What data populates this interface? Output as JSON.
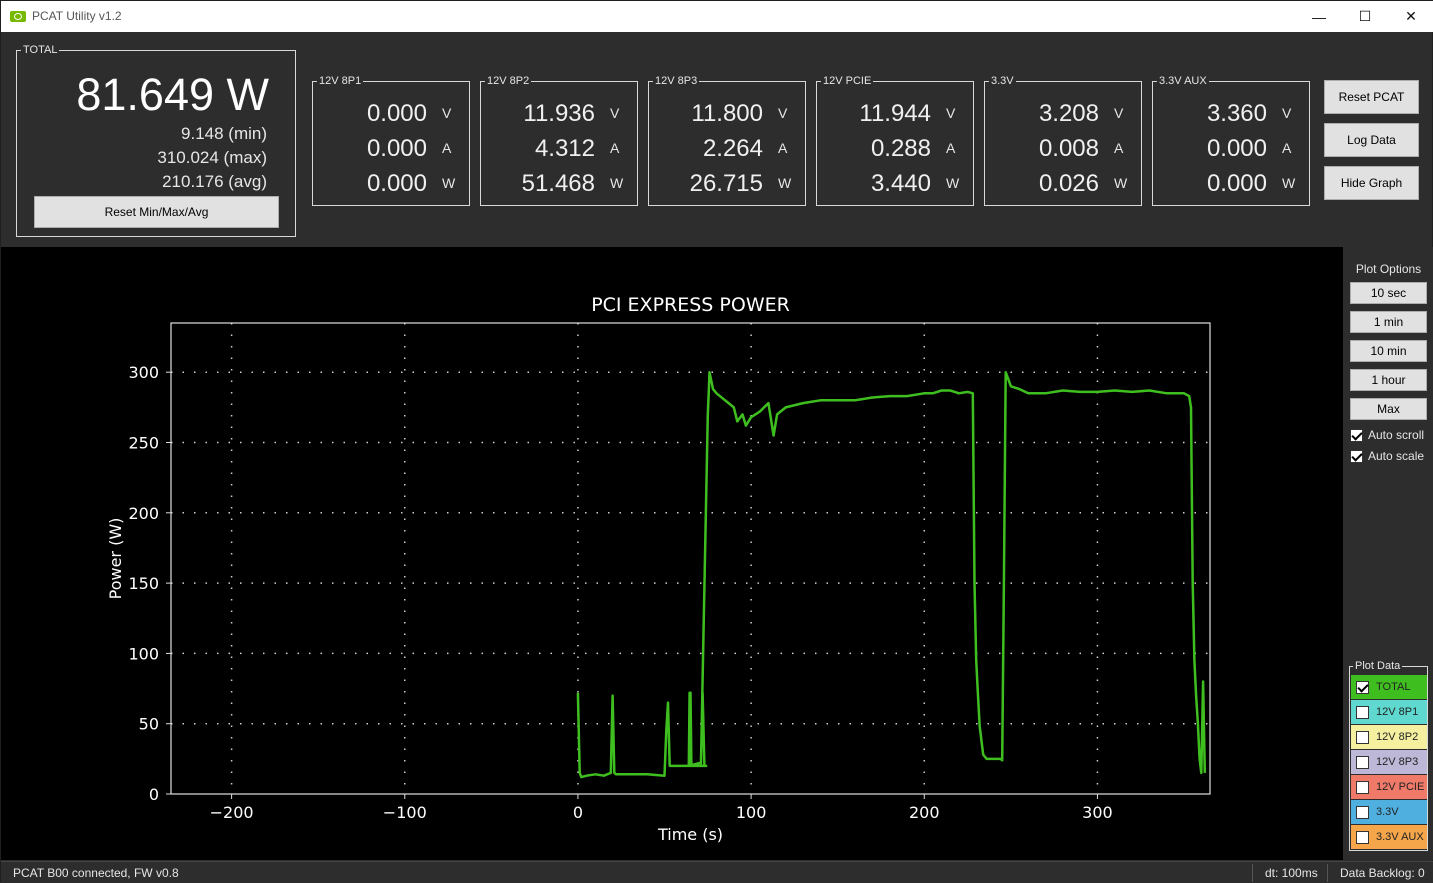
{
  "window": {
    "title": "PCAT Utility v1.2"
  },
  "titlebar": {
    "minimize": "—",
    "maximize": "☐",
    "close": "✕"
  },
  "total": {
    "group_label": "TOTAL",
    "value": "81.649 W",
    "min": "9.148 (min)",
    "max": "310.024 (max)",
    "avg": "210.176 (avg)",
    "reset_button": "Reset Min/Max/Avg"
  },
  "rails": [
    {
      "label": "12V 8P1",
      "voltage": "0.000",
      "current": "0.000",
      "power": "0.000"
    },
    {
      "label": "12V 8P2",
      "voltage": "11.936",
      "current": "4.312",
      "power": "51.468"
    },
    {
      "label": "12V 8P3",
      "voltage": "11.800",
      "current": "2.264",
      "power": "26.715"
    },
    {
      "label": "12V PCIE",
      "voltage": "11.944",
      "current": "0.288",
      "power": "3.440"
    },
    {
      "label": "3.3V",
      "voltage": "3.208",
      "current": "0.008",
      "power": "0.026"
    },
    {
      "label": "3.3V AUX",
      "voltage": "3.360",
      "current": "0.000",
      "power": "0.000"
    }
  ],
  "units": {
    "v": "V",
    "a": "A",
    "w": "W"
  },
  "side_buttons": {
    "reset_pcat": "Reset PCAT",
    "log_data": "Log Data",
    "hide_graph": "Hide Graph"
  },
  "plot_options": {
    "label": "Plot Options",
    "buttons": [
      "10 sec",
      "1 min",
      "10 min",
      "1 hour",
      "Max"
    ],
    "auto_scroll": "Auto scroll",
    "auto_scale": "Auto scale"
  },
  "plot_data": {
    "label": "Plot Data",
    "items": [
      {
        "label": "TOTAL",
        "checked": true,
        "color": "#3fbf1f"
      },
      {
        "label": "12V 8P1",
        "checked": false,
        "color": "#5fd9d0"
      },
      {
        "label": "12V 8P2",
        "checked": false,
        "color": "#f5f0a0"
      },
      {
        "label": "12V 8P3",
        "checked": false,
        "color": "#bdb8d8"
      },
      {
        "label": "12V PCIE",
        "checked": false,
        "color": "#f07a6a"
      },
      {
        "label": "3.3V",
        "checked": false,
        "color": "#4fb0e0"
      },
      {
        "label": "3.3V AUX",
        "checked": false,
        "color": "#f5a64a"
      }
    ]
  },
  "status": {
    "connection": "PCAT B00 connected, FW v0.8",
    "dt": "dt: 100ms",
    "backlog": "Data Backlog: 0"
  },
  "chart_data": {
    "type": "line",
    "title": "PCI EXPRESS POWER",
    "xlabel": "Time (s)",
    "ylabel": "Power (W)",
    "xlim": [
      -235,
      365
    ],
    "ylim": [
      0,
      335
    ],
    "xticks": [
      -200,
      -100,
      0,
      100,
      200,
      300
    ],
    "yticks": [
      0,
      50,
      100,
      150,
      200,
      250,
      300
    ],
    "grid": true,
    "series": [
      {
        "color": "#3fbf1f",
        "x": [
          0,
          1,
          2,
          5,
          10,
          15,
          19,
          20,
          21,
          22,
          30,
          40,
          50,
          51,
          52,
          53,
          60,
          64,
          64.5,
          65,
          65.5,
          66,
          70,
          64,
          64,
          71,
          72,
          73,
          74,
          70,
          71,
          75,
          75.5,
          76,
          78,
          80,
          85,
          90,
          92,
          95,
          97,
          100,
          105,
          110,
          113,
          115,
          120,
          130,
          140,
          150,
          160,
          170,
          180,
          190,
          200,
          205,
          210,
          215,
          220,
          225,
          228,
          229,
          230,
          231,
          232,
          234,
          236,
          240,
          244,
          245,
          246,
          247,
          250,
          255,
          260,
          270,
          280,
          290,
          300,
          310,
          320,
          330,
          340,
          350,
          353,
          354,
          355,
          356,
          357,
          358,
          359,
          360,
          361,
          362
        ],
        "y": [
          72,
          15,
          12,
          13,
          14,
          13,
          15,
          70,
          15,
          14,
          14,
          14,
          13,
          45,
          65,
          20,
          20,
          20,
          72,
          72,
          20,
          20,
          22,
          20,
          20,
          20,
          72,
          20,
          20,
          20,
          20,
          270,
          285,
          300,
          288,
          285,
          280,
          275,
          265,
          270,
          262,
          268,
          272,
          278,
          255,
          270,
          275,
          278,
          280,
          280,
          280,
          282,
          283,
          283,
          285,
          285,
          287,
          287,
          285,
          286,
          285,
          150,
          95,
          70,
          48,
          28,
          25,
          25,
          25,
          24,
          150,
          300,
          290,
          288,
          285,
          285,
          287,
          286,
          286,
          287,
          286,
          287,
          285,
          285,
          283,
          275,
          150,
          95,
          70,
          50,
          25,
          15,
          80,
          15
        ]
      }
    ]
  }
}
